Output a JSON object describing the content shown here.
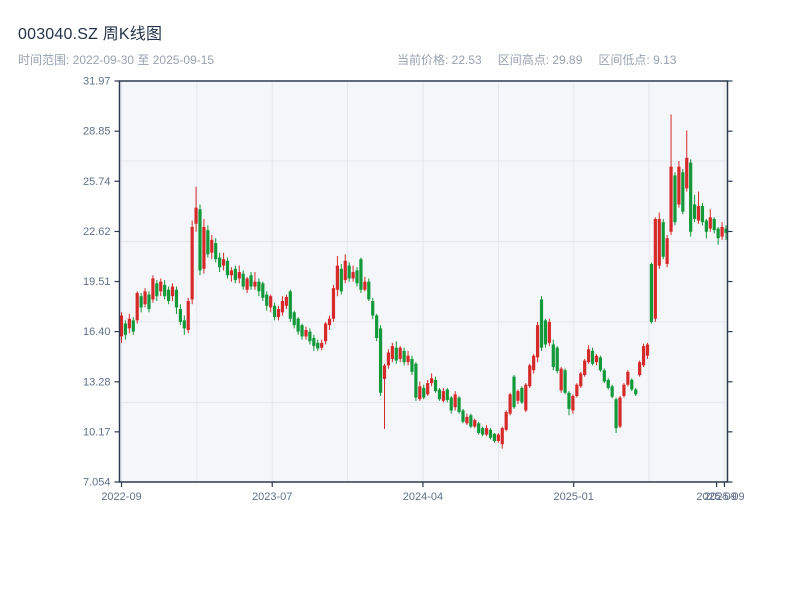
{
  "header": {
    "title": "003040.SZ 周K线图",
    "date_range": "时间范围: 2022-09-30 至 2025-09-15",
    "stats": {
      "current": "当前价格: 22.53",
      "high": "区间高点: 29.89",
      "low": "区间低点: 9.13"
    }
  },
  "chart_data": {
    "type": "candlestick",
    "title": "003040.SZ 周K线图",
    "interval": "weekly",
    "range_start": "2022-09-30",
    "range_end": "2025-09-15",
    "current_price": 22.53,
    "range_high": 29.89,
    "range_low": 9.13,
    "ylim": [
      7.054,
      31.97
    ],
    "y_tick_labels": [
      "31.97",
      "28.85",
      "25.74",
      "22.62",
      "19.51",
      "16.40",
      "13.28",
      "10.17",
      "7.054"
    ],
    "y_gridline_values": [
      27,
      22,
      17,
      12
    ],
    "x_ticks": [
      {
        "pos": 0.0,
        "label": "2022-09",
        "grid": true
      },
      {
        "pos": 19.2,
        "label": "",
        "grid": true
      },
      {
        "pos": 38.4,
        "label": "2023-07",
        "grid": true
      },
      {
        "pos": 57.6,
        "label": "",
        "grid": true
      },
      {
        "pos": 76.8,
        "label": "2024-04",
        "grid": true
      },
      {
        "pos": 96.0,
        "label": "",
        "grid": true
      },
      {
        "pos": 115.2,
        "label": "2025-01",
        "grid": true
      },
      {
        "pos": 134.4,
        "label": "",
        "grid": true
      },
      {
        "pos": 151.6,
        "label": "2025-09",
        "grid": false
      },
      {
        "pos": 153.6,
        "label": "2025-09",
        "grid": true
      }
    ],
    "up_color": "#d62a2a",
    "down_color": "#12993a",
    "plot_bg": "#f4f6f9",
    "grid_color": "#e4e8ee",
    "frame_color": "#2c3a50",
    "tick_label_color": "#61708a",
    "candles_ohlc": [
      [
        16.1,
        17.6,
        15.7,
        17.4
      ],
      [
        16.9,
        17.1,
        15.9,
        16.2
      ],
      [
        16.6,
        17.5,
        16.3,
        17.2
      ],
      [
        17.1,
        17.3,
        16.2,
        16.4
      ],
      [
        17.1,
        18.9,
        16.9,
        18.8
      ],
      [
        18.6,
        18.8,
        17.6,
        17.9
      ],
      [
        18.1,
        19.1,
        17.9,
        18.9
      ],
      [
        18.7,
        18.9,
        17.6,
        17.8
      ],
      [
        18.4,
        19.9,
        18.2,
        19.7
      ],
      [
        19.4,
        19.6,
        18.3,
        18.6
      ],
      [
        18.9,
        19.7,
        18.6,
        19.5
      ],
      [
        19.3,
        19.6,
        18.4,
        18.6
      ],
      [
        19.0,
        19.2,
        18.1,
        18.3
      ],
      [
        18.6,
        19.4,
        18.3,
        19.2
      ],
      [
        19.0,
        19.2,
        17.5,
        17.9
      ],
      [
        17.8,
        18.1,
        16.8,
        17.0
      ],
      [
        17.1,
        17.4,
        16.2,
        16.6
      ],
      [
        16.5,
        18.5,
        16.3,
        18.3
      ],
      [
        18.4,
        23.3,
        18.1,
        22.9
      ],
      [
        23.1,
        25.4,
        22.6,
        24.1
      ],
      [
        24.0,
        24.3,
        19.9,
        20.2
      ],
      [
        20.3,
        23.4,
        20.0,
        22.9
      ],
      [
        22.7,
        23.0,
        21.0,
        21.2
      ],
      [
        21.3,
        22.4,
        20.9,
        22.1
      ],
      [
        21.9,
        22.2,
        20.7,
        20.9
      ],
      [
        21.0,
        21.3,
        20.1,
        20.4
      ],
      [
        20.5,
        21.3,
        20.2,
        20.9
      ],
      [
        20.8,
        21.0,
        19.7,
        19.9
      ],
      [
        19.9,
        20.4,
        19.5,
        20.2
      ],
      [
        20.3,
        20.5,
        19.4,
        19.6
      ],
      [
        19.7,
        20.5,
        19.4,
        20.1
      ],
      [
        20.0,
        20.2,
        19.0,
        19.2
      ],
      [
        19.0,
        19.8,
        18.8,
        19.7
      ],
      [
        19.9,
        20.1,
        19.0,
        19.2
      ],
      [
        19.2,
        20.1,
        19.0,
        19.5
      ],
      [
        19.5,
        19.7,
        18.6,
        18.9
      ],
      [
        19.4,
        19.5,
        18.3,
        18.5
      ],
      [
        18.7,
        18.9,
        17.7,
        18.0
      ],
      [
        17.9,
        18.7,
        17.6,
        18.6
      ],
      [
        18.0,
        18.2,
        17.1,
        17.3
      ],
      [
        17.3,
        18.0,
        17.1,
        17.8
      ],
      [
        17.6,
        18.6,
        17.4,
        18.3
      ],
      [
        18.0,
        18.7,
        17.8,
        18.55
      ],
      [
        18.9,
        19.0,
        17.0,
        17.2
      ],
      [
        17.6,
        17.7,
        16.6,
        16.8
      ],
      [
        17.2,
        17.3,
        16.2,
        16.4
      ],
      [
        16.8,
        16.9,
        15.9,
        16.1
      ],
      [
        16.1,
        16.7,
        15.9,
        16.5
      ],
      [
        16.4,
        16.6,
        15.6,
        15.8
      ],
      [
        16.0,
        16.2,
        15.2,
        15.5
      ],
      [
        15.7,
        15.9,
        15.2,
        15.35
      ],
      [
        15.4,
        15.9,
        15.25,
        15.7
      ],
      [
        15.8,
        17.0,
        15.6,
        16.9
      ],
      [
        16.8,
        17.4,
        16.5,
        17.2
      ],
      [
        17.2,
        19.3,
        17.0,
        19.1
      ],
      [
        19.0,
        21.1,
        18.6,
        20.5
      ],
      [
        20.3,
        20.6,
        18.7,
        18.9
      ],
      [
        19.6,
        21.2,
        19.4,
        20.8
      ],
      [
        20.5,
        20.7,
        19.5,
        19.7
      ],
      [
        19.7,
        20.5,
        19.5,
        20.1
      ],
      [
        20.2,
        20.4,
        19.2,
        19.4
      ],
      [
        20.9,
        21.0,
        18.8,
        19.0
      ],
      [
        19.0,
        19.8,
        18.9,
        19.5
      ],
      [
        19.5,
        19.7,
        18.3,
        18.4
      ],
      [
        18.3,
        18.5,
        17.2,
        17.4
      ],
      [
        17.4,
        17.5,
        15.8,
        16.0
      ],
      [
        16.6,
        16.8,
        12.4,
        12.6
      ],
      [
        13.46,
        14.4,
        10.35,
        14.29
      ],
      [
        14.3,
        15.3,
        14.1,
        15.1
      ],
      [
        14.7,
        15.7,
        14.5,
        15.5
      ],
      [
        15.4,
        15.8,
        14.4,
        14.6
      ],
      [
        14.7,
        15.5,
        14.5,
        15.4
      ],
      [
        15.2,
        15.4,
        14.3,
        14.5
      ],
      [
        14.5,
        15.2,
        14.3,
        14.9
      ],
      [
        14.7,
        14.9,
        13.7,
        13.9
      ],
      [
        14.4,
        14.5,
        12.1,
        12.3
      ],
      [
        12.2,
        13.3,
        12.1,
        13.0
      ],
      [
        12.9,
        13.1,
        12.2,
        12.3
      ],
      [
        12.5,
        13.4,
        12.4,
        13.2
      ],
      [
        13.2,
        13.8,
        13.0,
        13.5
      ],
      [
        13.4,
        13.6,
        12.6,
        12.7
      ],
      [
        12.8,
        12.9,
        12.1,
        12.2
      ],
      [
        12.1,
        12.9,
        12.0,
        12.7
      ],
      [
        12.8,
        12.9,
        12.0,
        12.15
      ],
      [
        12.3,
        12.4,
        11.3,
        11.5
      ],
      [
        11.7,
        12.7,
        11.5,
        12.5
      ],
      [
        12.3,
        12.4,
        11.3,
        11.4
      ],
      [
        11.5,
        11.6,
        10.7,
        10.8
      ],
      [
        10.7,
        11.3,
        10.6,
        11.1
      ],
      [
        11.2,
        11.3,
        10.4,
        10.5
      ],
      [
        10.5,
        11.0,
        10.4,
        10.9
      ],
      [
        10.7,
        10.8,
        10.0,
        10.1
      ],
      [
        10.4,
        10.5,
        9.9,
        10.0
      ],
      [
        10.0,
        10.6,
        9.9,
        10.4
      ],
      [
        10.3,
        10.4,
        9.7,
        9.8
      ],
      [
        10.05,
        10.1,
        9.5,
        9.6
      ],
      [
        9.6,
        10.1,
        9.5,
        10.0
      ],
      [
        9.4,
        10.5,
        9.13,
        10.4
      ],
      [
        10.3,
        11.5,
        10.2,
        11.4
      ],
      [
        11.3,
        12.6,
        11.2,
        12.5
      ],
      [
        13.6,
        13.7,
        11.6,
        11.7
      ],
      [
        12.1,
        12.8,
        11.9,
        12.7
      ],
      [
        12.9,
        13.0,
        11.9,
        12.0
      ],
      [
        11.5,
        13.2,
        11.4,
        13.1
      ],
      [
        13.0,
        14.4,
        12.9,
        14.3
      ],
      [
        14.0,
        15.0,
        13.8,
        14.9
      ],
      [
        14.8,
        17.0,
        14.5,
        16.8
      ],
      [
        18.4,
        18.6,
        15.2,
        15.4
      ],
      [
        17.1,
        17.2,
        15.4,
        15.6
      ],
      [
        15.7,
        17.2,
        15.5,
        17.0
      ],
      [
        15.6,
        15.9,
        14.0,
        14.2
      ],
      [
        15.4,
        15.5,
        13.8,
        13.95
      ],
      [
        12.75,
        14.2,
        12.6,
        14.1
      ],
      [
        14.0,
        14.1,
        12.5,
        12.6
      ],
      [
        12.6,
        12.7,
        11.2,
        11.6
      ],
      [
        11.5,
        12.5,
        11.3,
        12.4
      ],
      [
        12.4,
        13.2,
        12.3,
        13.1
      ],
      [
        13.0,
        13.9,
        12.9,
        13.8
      ],
      [
        13.7,
        14.7,
        13.6,
        14.6
      ],
      [
        14.5,
        15.55,
        14.4,
        15.3
      ],
      [
        15.2,
        15.4,
        14.3,
        14.4
      ],
      [
        14.5,
        15.0,
        14.3,
        14.9
      ],
      [
        14.8,
        14.9,
        13.9,
        14.0
      ],
      [
        14.0,
        14.1,
        13.2,
        13.3
      ],
      [
        13.4,
        13.5,
        12.8,
        12.9
      ],
      [
        13.0,
        13.1,
        12.25,
        12.35
      ],
      [
        12.2,
        12.3,
        10.1,
        10.4
      ],
      [
        10.5,
        12.4,
        10.4,
        12.3
      ],
      [
        12.4,
        13.2,
        12.3,
        13.1
      ],
      [
        13.1,
        14.0,
        13.0,
        13.9
      ],
      [
        13.4,
        13.5,
        12.7,
        12.8
      ],
      [
        12.8,
        12.9,
        12.4,
        12.5
      ],
      [
        13.7,
        14.6,
        13.6,
        14.5
      ],
      [
        14.3,
        15.65,
        14.2,
        15.5
      ],
      [
        14.9,
        15.7,
        14.7,
        15.6
      ],
      [
        20.6,
        20.7,
        16.9,
        17.0
      ],
      [
        17.2,
        23.5,
        17.0,
        23.4
      ],
      [
        20.5,
        23.8,
        20.3,
        23.4
      ],
      [
        23.2,
        23.4,
        20.9,
        21.05
      ],
      [
        20.6,
        22.4,
        20.4,
        22.2
      ],
      [
        22.6,
        29.89,
        22.4,
        26.65
      ],
      [
        26.1,
        26.3,
        23.0,
        23.2
      ],
      [
        24.3,
        27.0,
        24.1,
        26.65
      ],
      [
        26.3,
        26.5,
        23.7,
        23.85
      ],
      [
        25.3,
        28.9,
        25.1,
        27.2
      ],
      [
        26.9,
        27.1,
        22.3,
        22.6
      ],
      [
        24.3,
        24.9,
        23.2,
        23.4
      ],
      [
        23.3,
        25.1,
        23.1,
        24.2
      ],
      [
        24.2,
        24.4,
        23.0,
        23.2
      ],
      [
        23.3,
        23.4,
        22.2,
        22.6
      ],
      [
        22.8,
        24.0,
        22.6,
        23.5
      ],
      [
        23.4,
        23.5,
        22.5,
        22.7
      ],
      [
        22.8,
        22.9,
        21.8,
        22.2
      ],
      [
        22.3,
        23.2,
        22.1,
        22.9
      ],
      [
        22.8,
        23.0,
        22.1,
        22.53
      ]
    ]
  }
}
